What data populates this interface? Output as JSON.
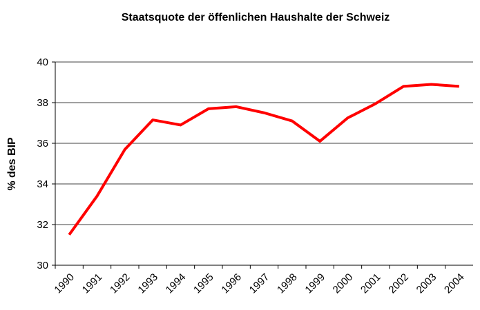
{
  "chart_data": {
    "type": "line",
    "title": "Staatsquote der öffenlichen Haushalte der Schweiz",
    "y_label": "% des BIP",
    "categories": [
      "1990",
      "1991",
      "1992",
      "1993",
      "1994",
      "1995",
      "1996",
      "1997",
      "1998",
      "1999",
      "2000",
      "2001",
      "2002",
      "2003",
      "2004"
    ],
    "series": [
      {
        "name": "Staatsquote",
        "color": "#ff0000",
        "values": [
          31.5,
          33.4,
          35.7,
          37.15,
          36.9,
          37.7,
          37.8,
          37.5,
          37.1,
          36.1,
          37.25,
          37.95,
          38.8,
          38.9,
          38.8
        ]
      }
    ],
    "ylim": [
      30,
      40
    ],
    "yticks": [
      30,
      32,
      34,
      36,
      38,
      40
    ],
    "grid": true
  }
}
